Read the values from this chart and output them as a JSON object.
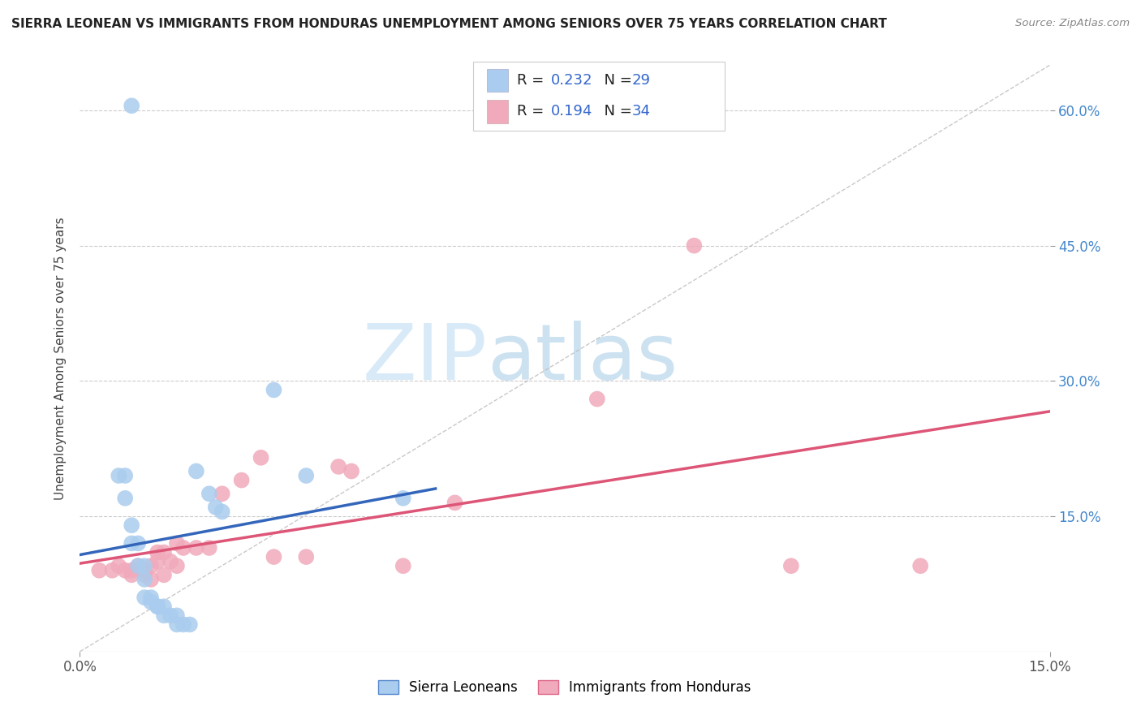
{
  "title": "SIERRA LEONEAN VS IMMIGRANTS FROM HONDURAS UNEMPLOYMENT AMONG SENIORS OVER 75 YEARS CORRELATION CHART",
  "source": "Source: ZipAtlas.com",
  "ylabel": "Unemployment Among Seniors over 75 years",
  "xlim": [
    0.0,
    0.15
  ],
  "ylim": [
    0.0,
    0.65
  ],
  "yticks_right": [
    0.15,
    0.3,
    0.45,
    0.6
  ],
  "ytick_labels_right": [
    "15.0%",
    "30.0%",
    "45.0%",
    "60.0%"
  ],
  "legend_R1": "0.232",
  "legend_N1": "29",
  "legend_R2": "0.194",
  "legend_N2": "34",
  "legend_label1": "Sierra Leoneans",
  "legend_label2": "Immigrants from Honduras",
  "blue_scatter": "#aaccee",
  "pink_scatter": "#f0aabb",
  "blue_edge": "#5588cc",
  "pink_edge": "#dd6688",
  "line_blue": "#3366bb",
  "line_pink": "#dd5577",
  "watermark_color": "#d8eaf8",
  "sierra_x": [
    0.006,
    0.007,
    0.007,
    0.008,
    0.008,
    0.009,
    0.009,
    0.01,
    0.01,
    0.01,
    0.011,
    0.011,
    0.012,
    0.012,
    0.013,
    0.013,
    0.014,
    0.015,
    0.015,
    0.016,
    0.017,
    0.018,
    0.02,
    0.021,
    0.022,
    0.03,
    0.035,
    0.05,
    0.008
  ],
  "sierra_y": [
    0.195,
    0.195,
    0.17,
    0.14,
    0.12,
    0.12,
    0.095,
    0.095,
    0.08,
    0.06,
    0.06,
    0.055,
    0.05,
    0.05,
    0.05,
    0.04,
    0.04,
    0.04,
    0.03,
    0.03,
    0.03,
    0.2,
    0.175,
    0.16,
    0.155,
    0.29,
    0.195,
    0.17,
    0.605
  ],
  "honduras_x": [
    0.003,
    0.005,
    0.006,
    0.007,
    0.008,
    0.008,
    0.009,
    0.01,
    0.01,
    0.011,
    0.011,
    0.012,
    0.012,
    0.013,
    0.013,
    0.014,
    0.015,
    0.015,
    0.016,
    0.018,
    0.02,
    0.022,
    0.025,
    0.028,
    0.03,
    0.035,
    0.04,
    0.042,
    0.05,
    0.058,
    0.08,
    0.095,
    0.11,
    0.13
  ],
  "honduras_y": [
    0.09,
    0.09,
    0.095,
    0.09,
    0.09,
    0.085,
    0.095,
    0.09,
    0.085,
    0.095,
    0.08,
    0.11,
    0.1,
    0.11,
    0.085,
    0.1,
    0.12,
    0.095,
    0.115,
    0.115,
    0.115,
    0.175,
    0.19,
    0.215,
    0.105,
    0.105,
    0.205,
    0.2,
    0.095,
    0.165,
    0.28,
    0.45,
    0.095,
    0.095
  ],
  "dashed_line_x": [
    0.0,
    0.15
  ],
  "dashed_line_y": [
    0.0,
    0.65
  ]
}
